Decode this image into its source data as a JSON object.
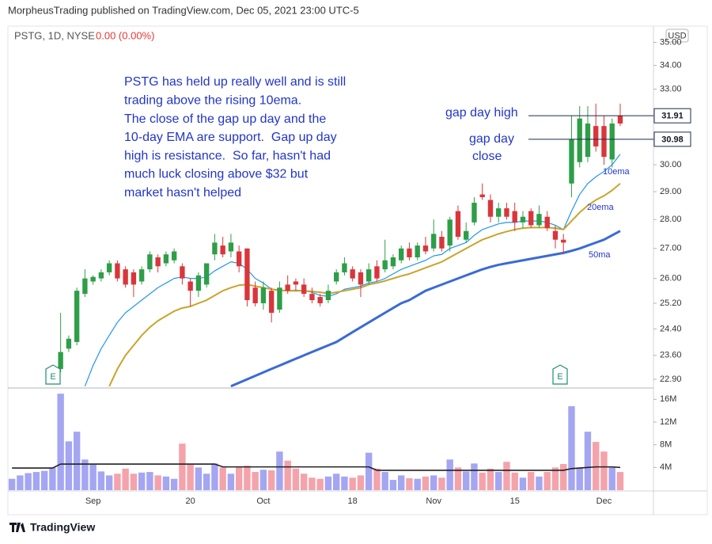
{
  "header": {
    "publisher": "MorpheusTrading published on TradingView.com, Dec 05, 2021 23:00 UTC-5",
    "symbol": "PSTG, 1D, NYSE",
    "change": "0.00 (0.00%)",
    "currency": "USD",
    "brand": "TradingView"
  },
  "chart_data": {
    "type": "candlestick",
    "log_scale": true,
    "grid": false,
    "annotations": [
      "PSTG has held up really well and is still",
      "trading above the rising 10ema.",
      "The close of the gap up day and the",
      "10-day EMA are support.  Gap up day",
      "high is resistance.  So far, hasn't had",
      "much luck closing above $32 but",
      "market hasn't helped"
    ],
    "price_line_labels": [
      "gap day high",
      "gap day",
      "close"
    ],
    "price_lines": [
      31.91,
      30.98
    ],
    "earnings_labels": [
      "E",
      "E"
    ],
    "up_color": "#2e9e48",
    "down_color": "#d9363b",
    "volume_up_color": "#a4a6f2",
    "volume_down_color": "#f4a3ab",
    "categories": [
      null,
      null,
      null,
      null,
      null,
      null,
      null,
      null,
      null,
      null,
      "Sep",
      null,
      null,
      null,
      null,
      null,
      null,
      null,
      null,
      null,
      null,
      null,
      "20",
      null,
      null,
      null,
      null,
      null,
      null,
      null,
      null,
      "Oct",
      null,
      null,
      null,
      null,
      null,
      null,
      null,
      null,
      null,
      null,
      "18",
      null,
      null,
      null,
      null,
      null,
      null,
      null,
      null,
      null,
      "Nov",
      null,
      null,
      null,
      null,
      null,
      null,
      null,
      null,
      null,
      "15",
      null,
      null,
      null,
      null,
      null,
      null,
      null,
      null,
      null,
      null,
      "Dec",
      null,
      null
    ],
    "open": [
      null,
      null,
      null,
      null,
      null,
      null,
      23.2,
      23.8,
      24.0,
      25.5,
      25.9,
      26.0,
      26.2,
      26.5,
      26.3,
      26.2,
      25.9,
      26.3,
      26.7,
      26.5,
      26.6,
      26.4,
      25.9,
      25.6,
      25.8,
      26.8,
      27.1,
      26.9,
      26.9,
      27.0,
      25.7,
      25.2,
      25.6,
      25.0,
      25.8,
      25.9,
      25.8,
      25.5,
      25.4,
      25.3,
      25.9,
      26.2,
      26.3,
      26.2,
      25.9,
      26.4,
      26.3,
      26.4,
      26.6,
      27.0,
      26.7,
      27.1,
      27.0,
      27.4,
      27.1,
      28.3,
      27.3,
      27.9,
      28.9,
      28.7,
      28.1,
      28.4,
      28.3,
      27.9,
      28.3,
      27.8,
      28.1,
      27.6,
      27.3,
      29.3,
      30.1,
      30.3,
      31.5,
      31.5,
      30.2,
      31.9
    ],
    "high": [
      null,
      null,
      null,
      null,
      null,
      null,
      24.9,
      24.2,
      25.7,
      26.3,
      26.1,
      26.3,
      26.6,
      26.6,
      26.4,
      26.3,
      26.4,
      26.9,
      26.8,
      26.9,
      27.0,
      26.5,
      26.0,
      26.2,
      26.5,
      27.5,
      27.4,
      27.5,
      27.1,
      27.0,
      25.9,
      25.9,
      25.7,
      25.9,
      26.1,
      26.0,
      26.0,
      25.7,
      25.5,
      25.8,
      26.3,
      26.7,
      26.4,
      26.3,
      26.5,
      26.6,
      27.3,
      26.8,
      27.1,
      27.2,
      27.2,
      27.4,
      28.0,
      27.6,
      28.1,
      28.5,
      27.9,
      28.8,
      29.3,
      28.9,
      28.6,
      28.6,
      28.6,
      28.3,
      28.4,
      28.5,
      28.3,
      27.8,
      27.5,
      31.91,
      32.3,
      32.3,
      32.4,
      31.9,
      31.8,
      32.4
    ],
    "low": [
      null,
      null,
      null,
      null,
      null,
      null,
      23.1,
      23.7,
      23.9,
      25.4,
      25.8,
      25.9,
      26.1,
      25.9,
      25.7,
      25.4,
      25.8,
      26.2,
      26.2,
      26.4,
      26.5,
      25.8,
      25.1,
      25.4,
      25.7,
      26.6,
      26.7,
      26.7,
      26.2,
      25.1,
      25.1,
      25.0,
      24.6,
      24.9,
      25.5,
      25.6,
      25.4,
      25.2,
      25.1,
      25.2,
      25.8,
      26.1,
      25.9,
      25.4,
      25.8,
      25.9,
      26.2,
      26.3,
      26.5,
      26.6,
      26.6,
      26.8,
      26.9,
      26.9,
      26.9,
      27.3,
      27.2,
      27.8,
      28.7,
      27.9,
      27.9,
      28.0,
      27.6,
      27.7,
      27.7,
      27.7,
      27.6,
      27.0,
      26.8,
      28.8,
      29.9,
      30.1,
      30.5,
      30.0,
      29.9,
      31.5
    ],
    "close": [
      null,
      null,
      null,
      null,
      null,
      null,
      23.7,
      24.1,
      25.6,
      26.0,
      26.05,
      26.2,
      26.5,
      26.0,
      25.8,
      25.8,
      26.3,
      26.8,
      26.4,
      26.8,
      26.9,
      26.0,
      25.6,
      26.1,
      26.5,
      27.2,
      26.8,
      27.2,
      26.4,
      25.3,
      25.2,
      25.7,
      24.9,
      25.7,
      25.6,
      25.8,
      25.5,
      25.3,
      25.2,
      25.6,
      26.2,
      26.5,
      26.0,
      25.8,
      26.3,
      26.0,
      26.6,
      26.7,
      27.0,
      26.7,
      27.1,
      26.9,
      27.5,
      27.0,
      28.0,
      27.4,
      27.6,
      28.6,
      28.8,
      28.1,
      28.4,
      28.1,
      27.9,
      28.1,
      27.8,
      28.2,
      27.7,
      27.3,
      27.2,
      30.98,
      31.8,
      31.6,
      30.7,
      30.3,
      31.6,
      31.6
    ],
    "volume": [
      2000000,
      2600000,
      3000000,
      3200000,
      3400000,
      4000000,
      17000000,
      8600000,
      10300000,
      5400000,
      4500000,
      3300000,
      2600000,
      2900000,
      3800000,
      2900000,
      3100000,
      3200000,
      2600000,
      2400000,
      2000000,
      8200000,
      4500000,
      4000000,
      2900000,
      4700000,
      4000000,
      2900000,
      4000000,
      4300000,
      3200000,
      3600000,
      3500000,
      6800000,
      5200000,
      3800000,
      2900000,
      2200000,
      2000000,
      2400000,
      2900000,
      2400000,
      2200000,
      2600000,
      6600000,
      3800000,
      3200000,
      1800000,
      2600000,
      2100000,
      2000000,
      2400000,
      2600000,
      2200000,
      5400000,
      4000000,
      3300000,
      4700000,
      3100000,
      3800000,
      3200000,
      5000000,
      3100000,
      2200000,
      3200000,
      2400000,
      3200000,
      4000000,
      4600000,
      14800000,
      4000000,
      10300000,
      8500000,
      6800000,
      4000000,
      3200000
    ],
    "volume_ma": {
      "color": "#222222",
      "values": [
        3900000,
        3900000,
        3900000,
        3900000,
        3900000,
        3900000,
        4600000,
        4600000,
        4600000,
        4600000,
        4600000,
        4600000,
        4600000,
        4600000,
        4600000,
        4600000,
        4600000,
        4600000,
        4600000,
        4600000,
        4600000,
        4600000,
        4600000,
        4600000,
        4600000,
        4600000,
        4100000,
        4100000,
        4100000,
        4100000,
        4100000,
        4100000,
        4100000,
        4100000,
        4100000,
        4100000,
        4100000,
        4100000,
        4100000,
        4100000,
        4100000,
        4100000,
        4100000,
        4100000,
        4100000,
        3500000,
        3500000,
        3500000,
        3500000,
        3500000,
        3500000,
        3500000,
        3500000,
        3500000,
        3500000,
        3500000,
        3500000,
        3500000,
        3500000,
        3500000,
        3500000,
        3500000,
        3500000,
        3500000,
        3500000,
        3500000,
        3500000,
        3500000,
        3500000,
        3800000,
        3900000,
        4000000,
        4100000,
        4100000,
        4100000,
        4000000
      ]
    },
    "series": [
      {
        "name": "10ema",
        "color": "#2196f3",
        "line_width": 1.2,
        "values": [
          null,
          null,
          null,
          null,
          null,
          null,
          null,
          null,
          null,
          22.7,
          23.3,
          23.8,
          24.2,
          24.6,
          24.9,
          25.1,
          25.3,
          25.5,
          25.7,
          25.85,
          26.0,
          26.05,
          26.0,
          26.0,
          26.05,
          26.25,
          26.4,
          26.55,
          26.5,
          26.3,
          26.0,
          25.85,
          25.65,
          25.6,
          25.6,
          25.62,
          25.6,
          25.55,
          25.45,
          25.42,
          25.5,
          25.65,
          25.7,
          25.75,
          25.85,
          25.9,
          26.0,
          26.15,
          26.3,
          26.4,
          26.5,
          26.6,
          26.75,
          26.8,
          27.0,
          27.1,
          27.2,
          27.45,
          27.65,
          27.75,
          27.85,
          27.9,
          27.9,
          27.95,
          27.95,
          27.95,
          27.9,
          27.8,
          27.65,
          28.3,
          28.9,
          29.3,
          29.55,
          29.75,
          30.0,
          30.4
        ]
      },
      {
        "name": "20ema",
        "color": "#c9a42c",
        "line_width": 2,
        "values": [
          null,
          null,
          null,
          null,
          null,
          null,
          null,
          null,
          null,
          null,
          null,
          null,
          22.7,
          23.2,
          23.6,
          23.9,
          24.2,
          24.45,
          24.65,
          24.8,
          24.95,
          25.05,
          25.1,
          25.2,
          25.3,
          25.45,
          25.6,
          25.7,
          25.78,
          25.8,
          25.75,
          25.7,
          25.65,
          25.62,
          25.6,
          25.6,
          25.6,
          25.58,
          25.55,
          25.52,
          25.55,
          25.6,
          25.65,
          25.7,
          25.8,
          25.85,
          25.92,
          26.0,
          26.08,
          26.15,
          26.25,
          26.35,
          26.45,
          26.55,
          26.7,
          26.85,
          27.0,
          27.15,
          27.3,
          27.4,
          27.5,
          27.58,
          27.65,
          27.7,
          27.72,
          27.72,
          27.72,
          27.7,
          27.65,
          27.95,
          28.25,
          28.5,
          28.7,
          28.85,
          29.05,
          29.3
        ]
      },
      {
        "name": "50ma",
        "color": "#3a6bd4",
        "line_width": 3,
        "values": [
          null,
          null,
          null,
          null,
          null,
          null,
          null,
          null,
          null,
          null,
          null,
          null,
          null,
          null,
          null,
          null,
          null,
          null,
          null,
          null,
          null,
          null,
          null,
          null,
          null,
          null,
          null,
          22.7,
          22.8,
          22.9,
          23.0,
          23.1,
          23.2,
          23.3,
          23.4,
          23.5,
          23.6,
          23.7,
          23.8,
          23.9,
          24.0,
          24.15,
          24.3,
          24.45,
          24.6,
          24.75,
          24.9,
          25.05,
          25.2,
          25.3,
          25.45,
          25.6,
          25.7,
          25.8,
          25.9,
          26.0,
          26.1,
          26.2,
          26.3,
          26.38,
          26.45,
          26.5,
          26.55,
          26.6,
          26.65,
          26.7,
          26.75,
          26.8,
          26.85,
          26.92,
          27.0,
          27.1,
          27.2,
          27.3,
          27.45,
          27.6
        ]
      }
    ],
    "ylim": [
      22.65,
      35.65
    ],
    "yticks": [
      {
        "value": 35,
        "label": "35.00"
      },
      {
        "value": 34,
        "label": "34.00"
      },
      {
        "value": 33,
        "label": "33.00"
      },
      {
        "value": 30,
        "label": "30.00"
      },
      {
        "value": 29,
        "label": "29.00"
      },
      {
        "value": 28,
        "label": "28.00"
      },
      {
        "value": 27,
        "label": "27.00"
      },
      {
        "value": 26,
        "label": "26.00"
      },
      {
        "value": 25.2,
        "label": "25.20"
      },
      {
        "value": 24.4,
        "label": "24.40"
      },
      {
        "value": 23.6,
        "label": "23.60"
      },
      {
        "value": 22.9,
        "label": "22.90"
      }
    ],
    "y2lim": [
      0,
      18000000
    ],
    "y2ticks": [
      {
        "value": 16000000,
        "label": "16M"
      },
      {
        "value": 12000000,
        "label": "12M"
      },
      {
        "value": 8000000,
        "label": "8M"
      },
      {
        "value": 4000000,
        "label": "4M"
      }
    ]
  }
}
